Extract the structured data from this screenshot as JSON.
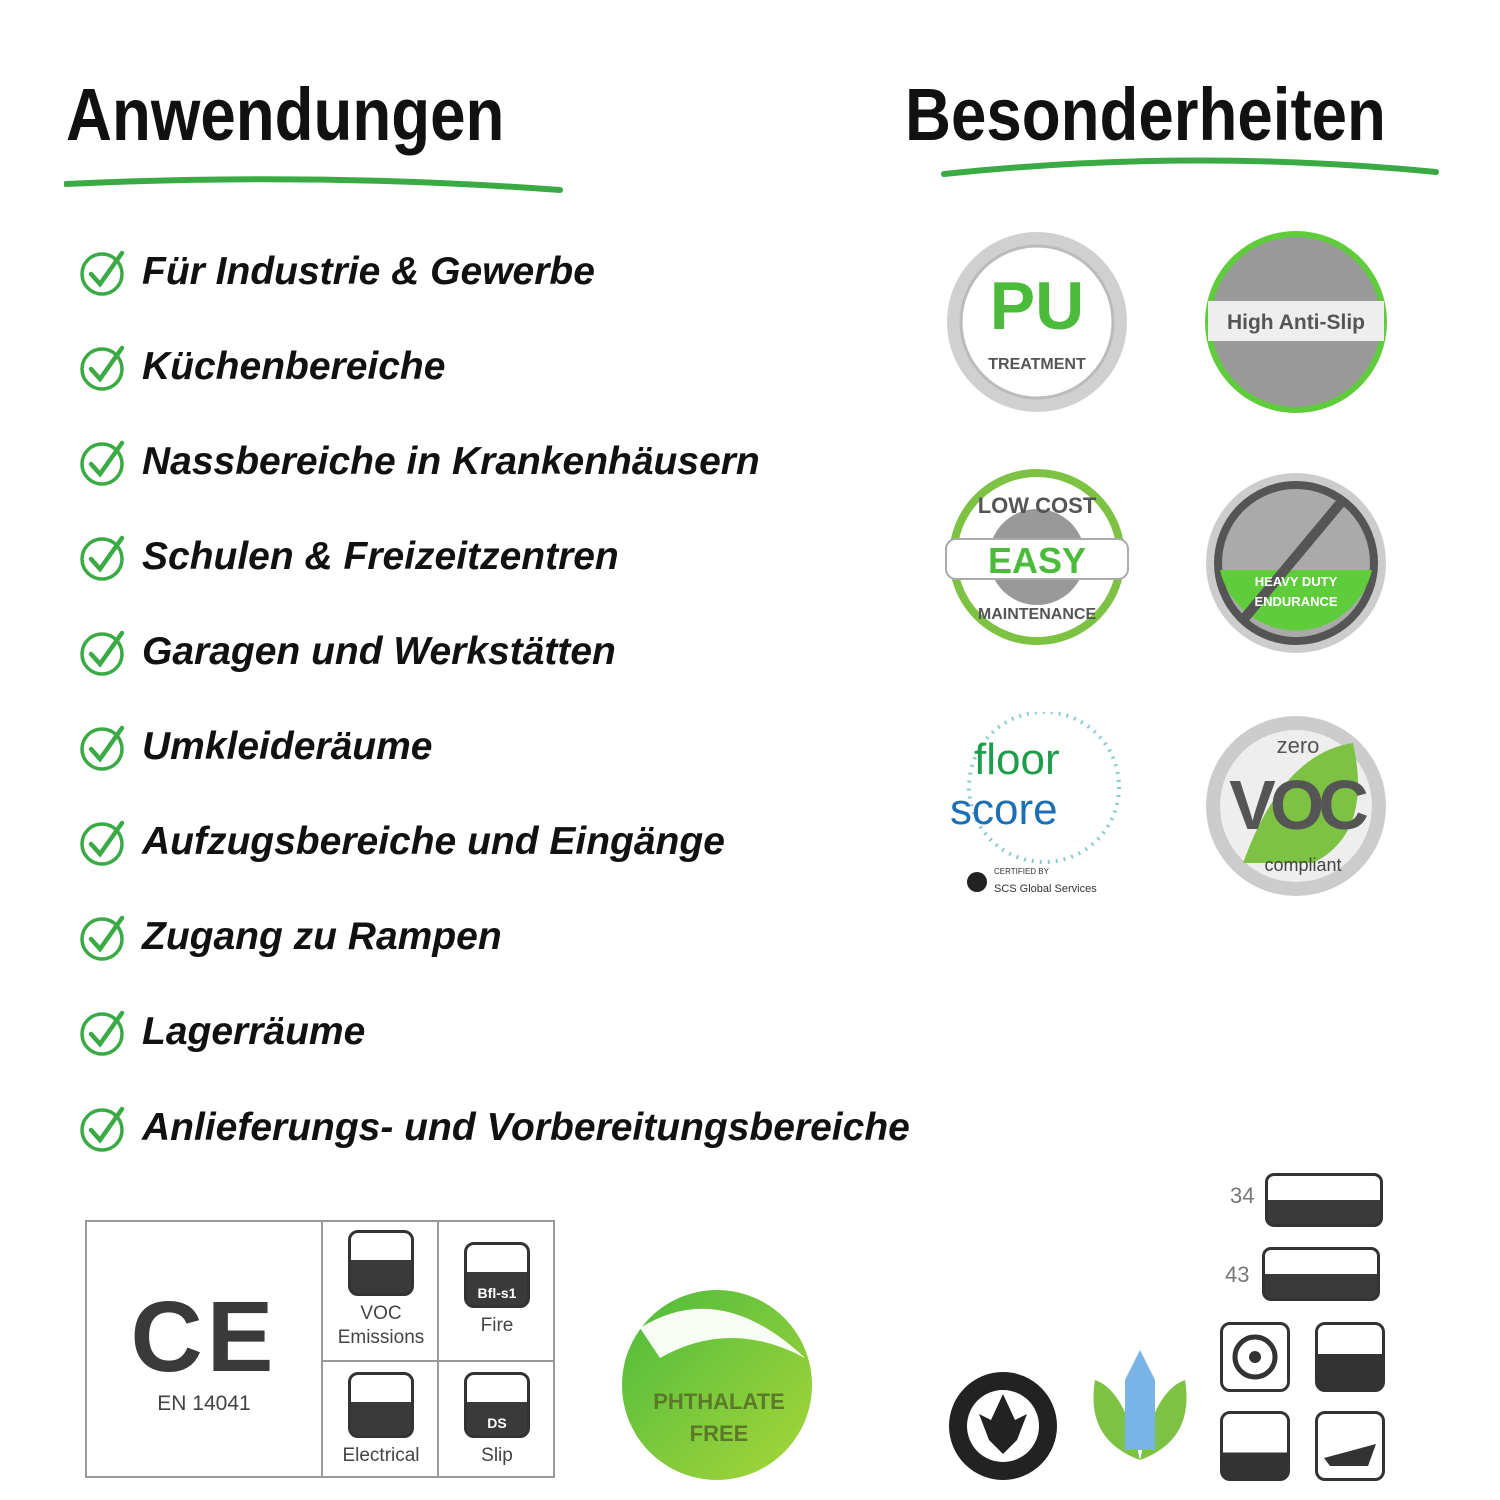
{
  "headings": {
    "left": "Anwendungen",
    "right": "Besonderheiten"
  },
  "accent_color": "#3aaa45",
  "applications": [
    "Für Industrie & Gewerbe",
    "Küchenbereiche",
    "Nassbereiche in Krankenhäusern",
    "Schulen & Freizeitzentren",
    "Garagen und Werkstätten",
    "Umkleideräume",
    "Aufzugsbereiche und Eingänge",
    "Zugang zu Rampen",
    "Lagerräume",
    "Anlieferungs- und Vorbereitungsbereiche"
  ],
  "badges": {
    "pu": {
      "big": "PU",
      "small": "TREATMENT"
    },
    "antislip": {
      "label": "High Anti-Slip"
    },
    "easy": {
      "top": "LOW COST",
      "main": "EASY",
      "bottom": "MAINTENANCE"
    },
    "heavy": {
      "line1": "HEAVY DUTY",
      "line2": "ENDURANCE"
    },
    "floorscore": {
      "line1": "floor",
      "line2": "score",
      "cert1": "CERTIFIED BY",
      "cert2": "SCS Global Services"
    },
    "voc": {
      "top": "zero",
      "main": "VOC",
      "bottom": "compliant"
    }
  },
  "certification_box": {
    "ce_mark": "CE",
    "standard": "EN 14041",
    "cells": [
      {
        "label": "VOC Emissions",
        "icon": "voc-emissions-icon"
      },
      {
        "label": "Fire",
        "icon": "fire-icon",
        "code": "Bfl-s1"
      },
      {
        "label": "Electrical",
        "icon": "electrical-icon"
      },
      {
        "label": "Slip",
        "icon": "slip-icon",
        "code": "DS"
      }
    ]
  },
  "phthalate": {
    "line1": "PHTHALATE",
    "line2": "FREE"
  },
  "logos": {
    "usgbc": "U.S. GREEN BUILDING COUNCIL MEMBER",
    "igbc": "indian green building council"
  },
  "use_classes": [
    "34",
    "43"
  ]
}
